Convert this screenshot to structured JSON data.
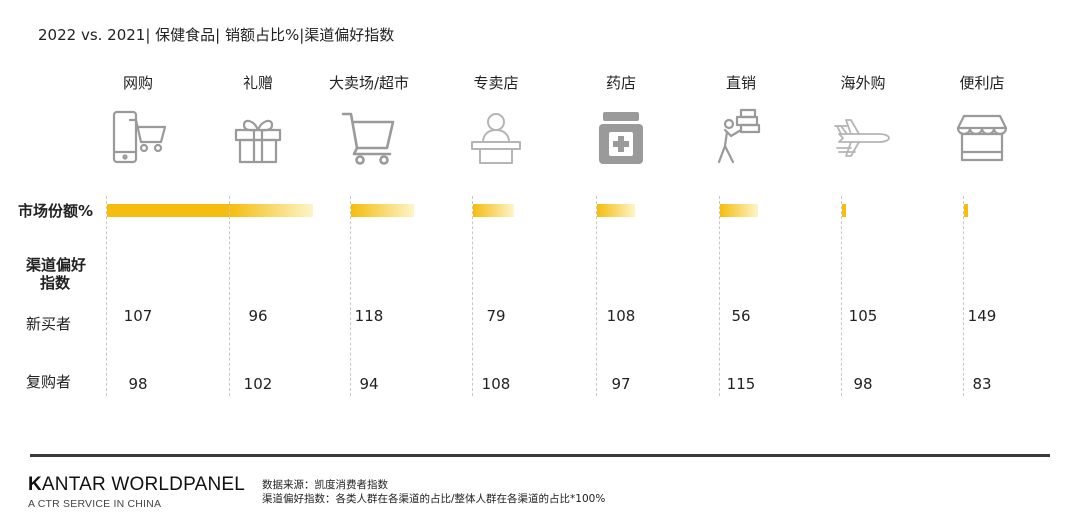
{
  "title": "2022 vs. 2021| 保健食品| 销额占比%|渠道偏好指数",
  "row_labels": {
    "market_share": "市场份额%",
    "preference_line1": "渠道偏好",
    "preference_line2": "指数",
    "new_buyers": "新买者",
    "repeat_buyers": "复购者"
  },
  "chart_data": {
    "type": "table",
    "channels": [
      "网购",
      "礼赠",
      "大卖场/超市",
      "专卖店",
      "药店",
      "直销",
      "海外购",
      "便利店"
    ],
    "icons": [
      "phone-cart-icon",
      "gift-box-icon",
      "shopping-cart-icon",
      "shop-counter-icon",
      "medicine-bottle-icon",
      "delivery-person-icon",
      "airplane-icon",
      "storefront-icon"
    ],
    "market_share_bar_relative": [
      1.0,
      0.46,
      0.35,
      0.23,
      0.21,
      0.21,
      0.02,
      0.02
    ],
    "new_buyers": [
      107,
      96,
      118,
      79,
      108,
      56,
      105,
      149
    ],
    "repeat_buyers": [
      98,
      102,
      94,
      108,
      97,
      115,
      98,
      83
    ],
    "colors": {
      "bar_start": "#f5bd0e",
      "bar_end": "#fdf4c9"
    }
  },
  "footer": {
    "brand_bold": "K",
    "brand_rest": "ANTAR WORLDPANEL",
    "brand_sub": "A CTR SERVICE IN CHINA",
    "source": "数据来源：凯度消费者指数",
    "note": "渠道偏好指数：各类人群在各渠道的占比/整体人群在各渠道的占比*100%"
  }
}
